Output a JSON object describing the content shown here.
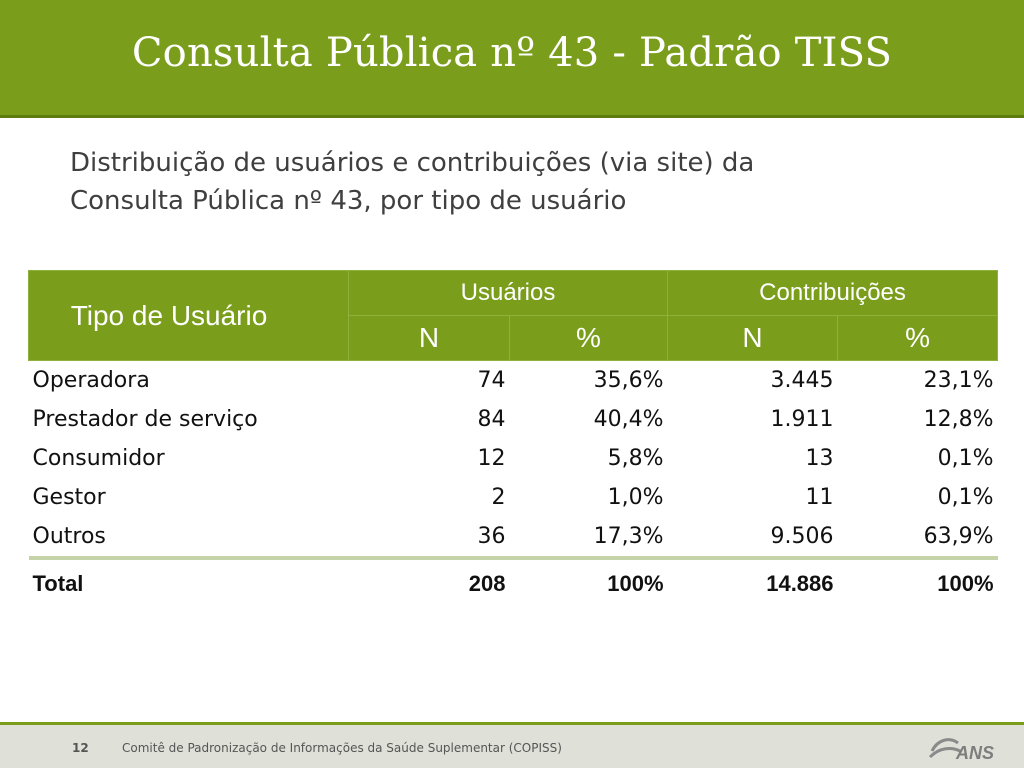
{
  "slide": {
    "title": "Consulta Pública nº 43 - Padrão TISS",
    "subtitle_line1": "Distribuição de usuários e contribuições (via site) da",
    "subtitle_line2": "Consulta Pública nº 43, por tipo de usuário"
  },
  "table": {
    "header_type": "Tipo de Usuário",
    "header_group1": "Usuários",
    "header_group2": "Contribuições",
    "header_n": "N",
    "header_pct": "%",
    "rows": [
      {
        "tipo": "Operadora",
        "usuarios_n": "74",
        "usuarios_pct": "35,6%",
        "contrib_n": "3.445",
        "contrib_pct": "23,1%"
      },
      {
        "tipo": "Prestador de serviço",
        "usuarios_n": "84",
        "usuarios_pct": "40,4%",
        "contrib_n": "1.911",
        "contrib_pct": "12,8%"
      },
      {
        "tipo": "Consumidor",
        "usuarios_n": "12",
        "usuarios_pct": "5,8%",
        "contrib_n": "13",
        "contrib_pct": "0,1%"
      },
      {
        "tipo": "Gestor",
        "usuarios_n": "2",
        "usuarios_pct": "1,0%",
        "contrib_n": "11",
        "contrib_pct": "0,1%"
      },
      {
        "tipo": "Outros",
        "usuarios_n": "36",
        "usuarios_pct": "17,3%",
        "contrib_n": "9.506",
        "contrib_pct": "63,9%"
      }
    ],
    "total": {
      "tipo": "Total",
      "usuarios_n": "208",
      "usuarios_pct": "100%",
      "contrib_n": "14.886",
      "contrib_pct": "100%"
    }
  },
  "footer": {
    "page_number": "12",
    "text": "Comitê de Padronização de Informações da Saúde Suplementar (COPISS)",
    "logo_text": "ANS",
    "logo_icon": "ans-logo"
  },
  "colors": {
    "accent_green": "#7a9e1c",
    "footer_bg": "#dfe0d8"
  }
}
